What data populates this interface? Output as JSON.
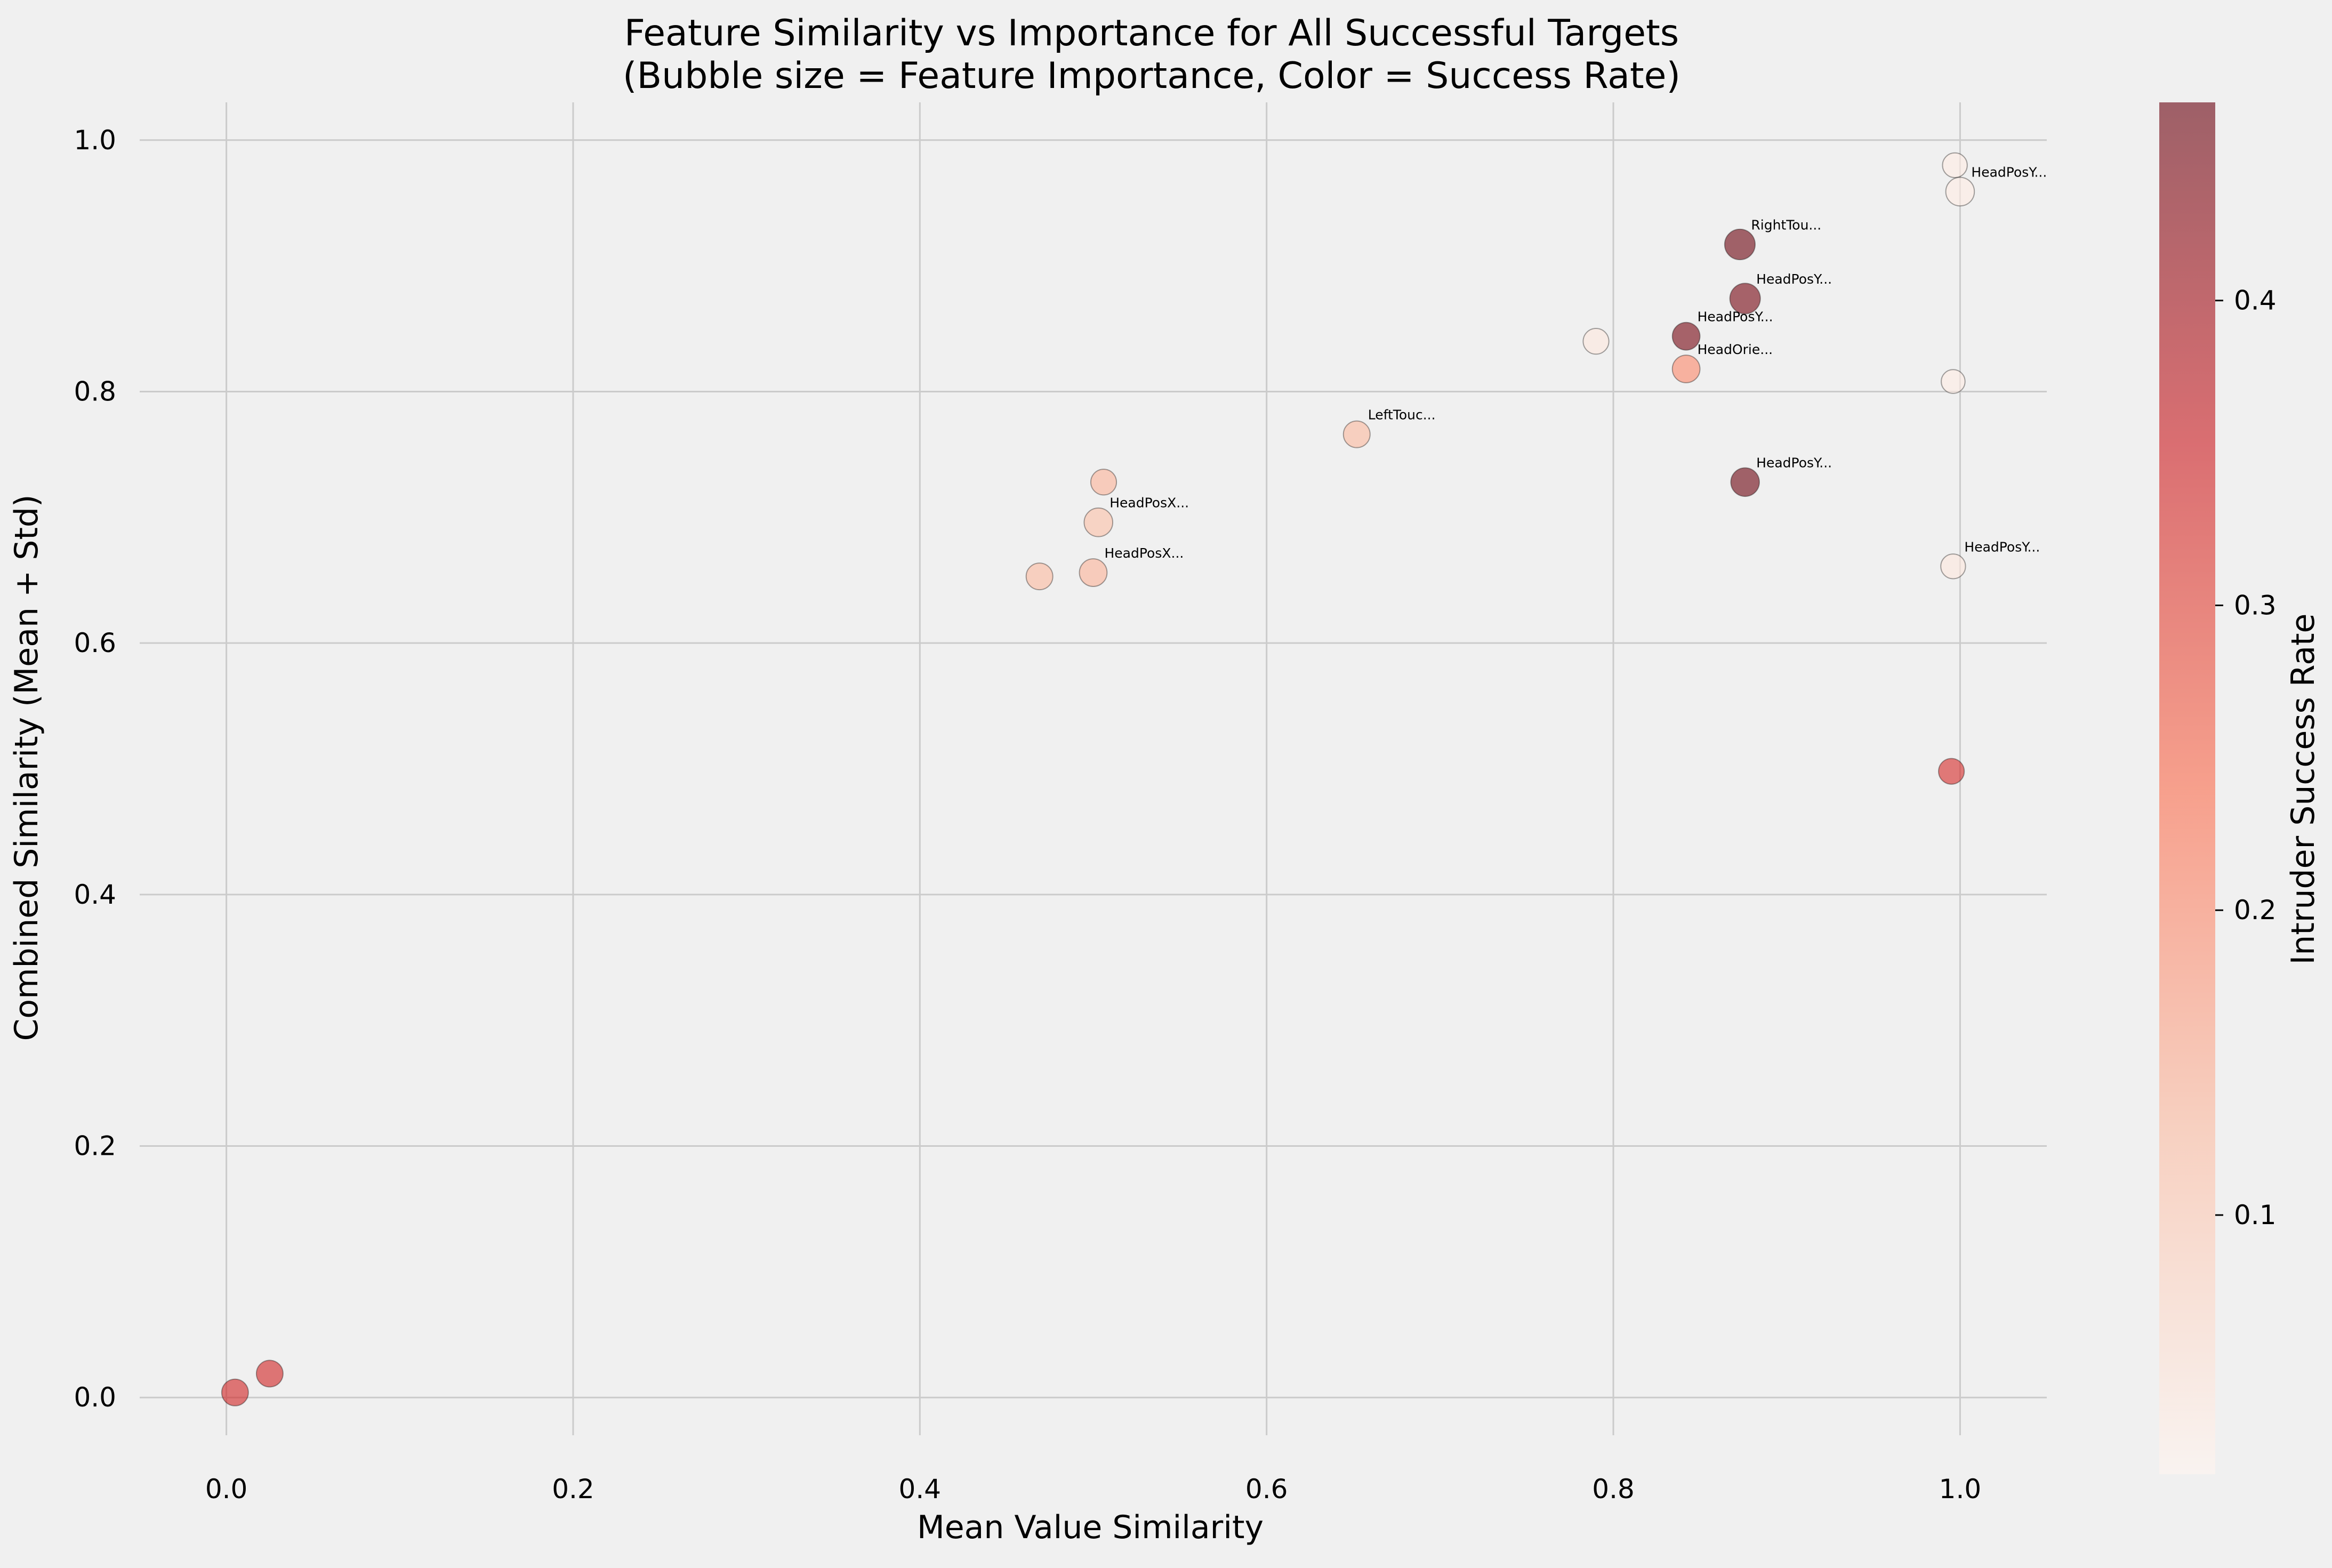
{
  "chart_data": {
    "type": "scatter",
    "title": "Feature Similarity vs Importance for All Successful Targets",
    "subtitle": "(Bubble size = Feature Importance, Color = Success Rate)",
    "xlabel": "Mean Value Similarity",
    "ylabel": "Combined Similarity (Mean + Std)",
    "colorbar_label": "Intruder Success Rate",
    "xlim": [
      -0.05,
      1.05
    ],
    "ylim": [
      -0.03,
      1.03
    ],
    "xticks": [
      "0.0",
      "0.2",
      "0.4",
      "0.6",
      "0.8",
      "1.0"
    ],
    "xtick_values": [
      0.0,
      0.2,
      0.4,
      0.6,
      0.8,
      1.0
    ],
    "yticks": [
      "0.0",
      "0.2",
      "0.4",
      "0.6",
      "0.8",
      "1.0"
    ],
    "ytick_values": [
      0.0,
      0.2,
      0.4,
      0.6,
      0.8,
      1.0
    ],
    "colorbar_range": [
      0.015,
      0.465
    ],
    "colorbar_ticks": [
      "0.1",
      "0.2",
      "0.3",
      "0.4"
    ],
    "colorbar_tick_values": [
      0.1,
      0.2,
      0.3,
      0.4
    ],
    "grid": true,
    "colormap": [
      "#fff5f0",
      "#fcbba1",
      "#fb6a4a",
      "#cb181d",
      "#67000d"
    ],
    "points": [
      {
        "x": 0.005,
        "y": 0.004,
        "size": 0.5,
        "rate": 0.34,
        "label": ""
      },
      {
        "x": 0.025,
        "y": 0.019,
        "size": 0.5,
        "rate": 0.34,
        "label": ""
      },
      {
        "x": 0.469,
        "y": 0.653,
        "size": 0.5,
        "rate": 0.13,
        "label": ""
      },
      {
        "x": 0.5,
        "y": 0.656,
        "size": 0.55,
        "rate": 0.14,
        "label": "HeadPosX..."
      },
      {
        "x": 0.503,
        "y": 0.696,
        "size": 0.6,
        "rate": 0.12,
        "label": "HeadPosX..."
      },
      {
        "x": 0.506,
        "y": 0.728,
        "size": 0.45,
        "rate": 0.14,
        "label": ""
      },
      {
        "x": 0.652,
        "y": 0.766,
        "size": 0.5,
        "rate": 0.13,
        "label": "LeftTouc..."
      },
      {
        "x": 0.79,
        "y": 0.84,
        "size": 0.45,
        "rate": 0.04,
        "label": ""
      },
      {
        "x": 0.842,
        "y": 0.844,
        "size": 0.55,
        "rate": 0.45,
        "label": "HeadPosY..."
      },
      {
        "x": 0.842,
        "y": 0.818,
        "size": 0.55,
        "rate": 0.2,
        "label": "HeadOrie..."
      },
      {
        "x": 0.873,
        "y": 0.917,
        "size": 0.7,
        "rate": 0.46,
        "label": "RightTou..."
      },
      {
        "x": 0.876,
        "y": 0.874,
        "size": 0.7,
        "rate": 0.45,
        "label": "HeadPosY..."
      },
      {
        "x": 0.876,
        "y": 0.728,
        "size": 0.6,
        "rate": 0.46,
        "label": "HeadPosY..."
      },
      {
        "x": 0.995,
        "y": 0.498,
        "size": 0.45,
        "rate": 0.33,
        "label": ""
      },
      {
        "x": 0.996,
        "y": 0.661,
        "size": 0.4,
        "rate": 0.04,
        "label": "HeadPosY..."
      },
      {
        "x": 0.996,
        "y": 0.808,
        "size": 0.35,
        "rate": 0.03,
        "label": ""
      },
      {
        "x": 0.997,
        "y": 0.98,
        "size": 0.4,
        "rate": 0.03,
        "label": ""
      },
      {
        "x": 1.0,
        "y": 0.959,
        "size": 0.6,
        "rate": 0.03,
        "label": "HeadPosY..."
      }
    ]
  }
}
